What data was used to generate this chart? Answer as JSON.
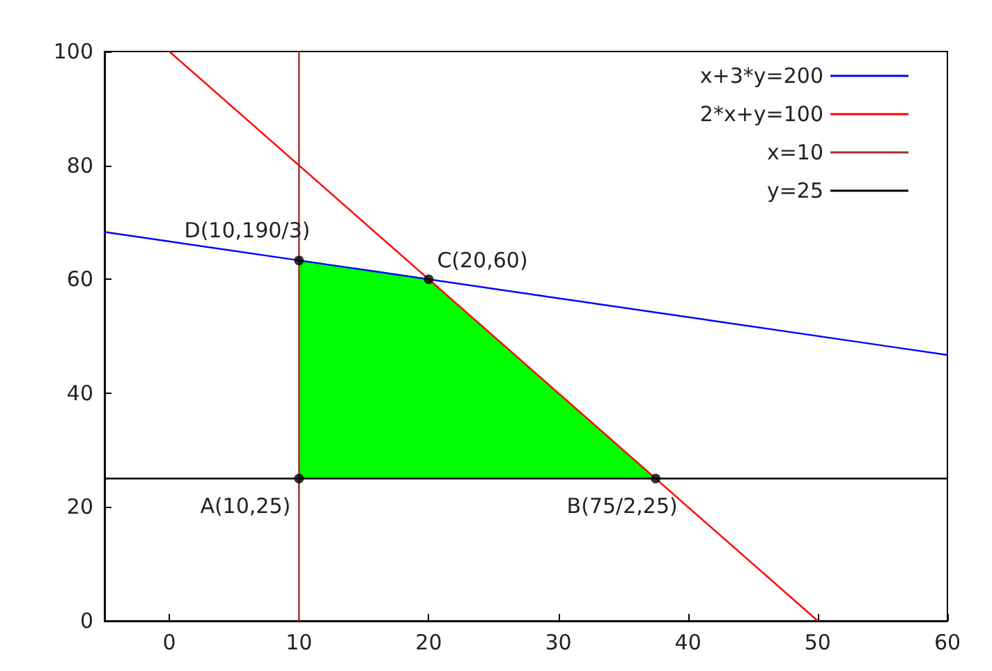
{
  "chart_data": {
    "type": "line",
    "xlim": [
      -5,
      60
    ],
    "xticks": [
      0,
      10,
      20,
      30,
      40,
      50,
      60
    ],
    "ylim": [
      0,
      100
    ],
    "yticks": [
      0,
      20,
      40,
      60,
      80,
      100
    ],
    "grid": false,
    "legend": "top right",
    "line_style": "solid",
    "series": [
      {
        "name": "x+3*y=200",
        "color": "#0000ff",
        "x": [
          -5,
          60
        ],
        "values": [
          68.3,
          46.7
        ]
      },
      {
        "name": "2*x+y=100",
        "color": "#ff0000",
        "x": [
          0,
          50
        ],
        "values": [
          100,
          0
        ]
      },
      {
        "name": "x=10",
        "color": "#a0302a",
        "x": [
          10,
          10
        ],
        "values": [
          0,
          100
        ]
      },
      {
        "name": "y=25",
        "color": "#000000",
        "x": [
          -5,
          60
        ],
        "values": [
          25,
          25
        ]
      },
      {
        "type": "area",
        "color": "#00ff00",
        "x": [
          10,
          10,
          20,
          37.5
        ],
        "values": [
          25,
          63.3,
          60,
          25
        ]
      },
      {
        "type": "scatter",
        "color": "#000000",
        "marker": "circle",
        "x": [
          10,
          37.5,
          20,
          10
        ],
        "values": [
          25,
          25,
          60,
          63.3
        ]
      }
    ],
    "annotations": [
      {
        "text": "A(10,25)",
        "x": 10,
        "y": 25
      },
      {
        "text": "B(75/2,25)",
        "x": 37.5,
        "y": 25
      },
      {
        "text": "C(20,60)",
        "x": 20,
        "y": 60
      },
      {
        "text": "D(10,190/3)",
        "x": 10,
        "y": 63.3
      }
    ]
  }
}
